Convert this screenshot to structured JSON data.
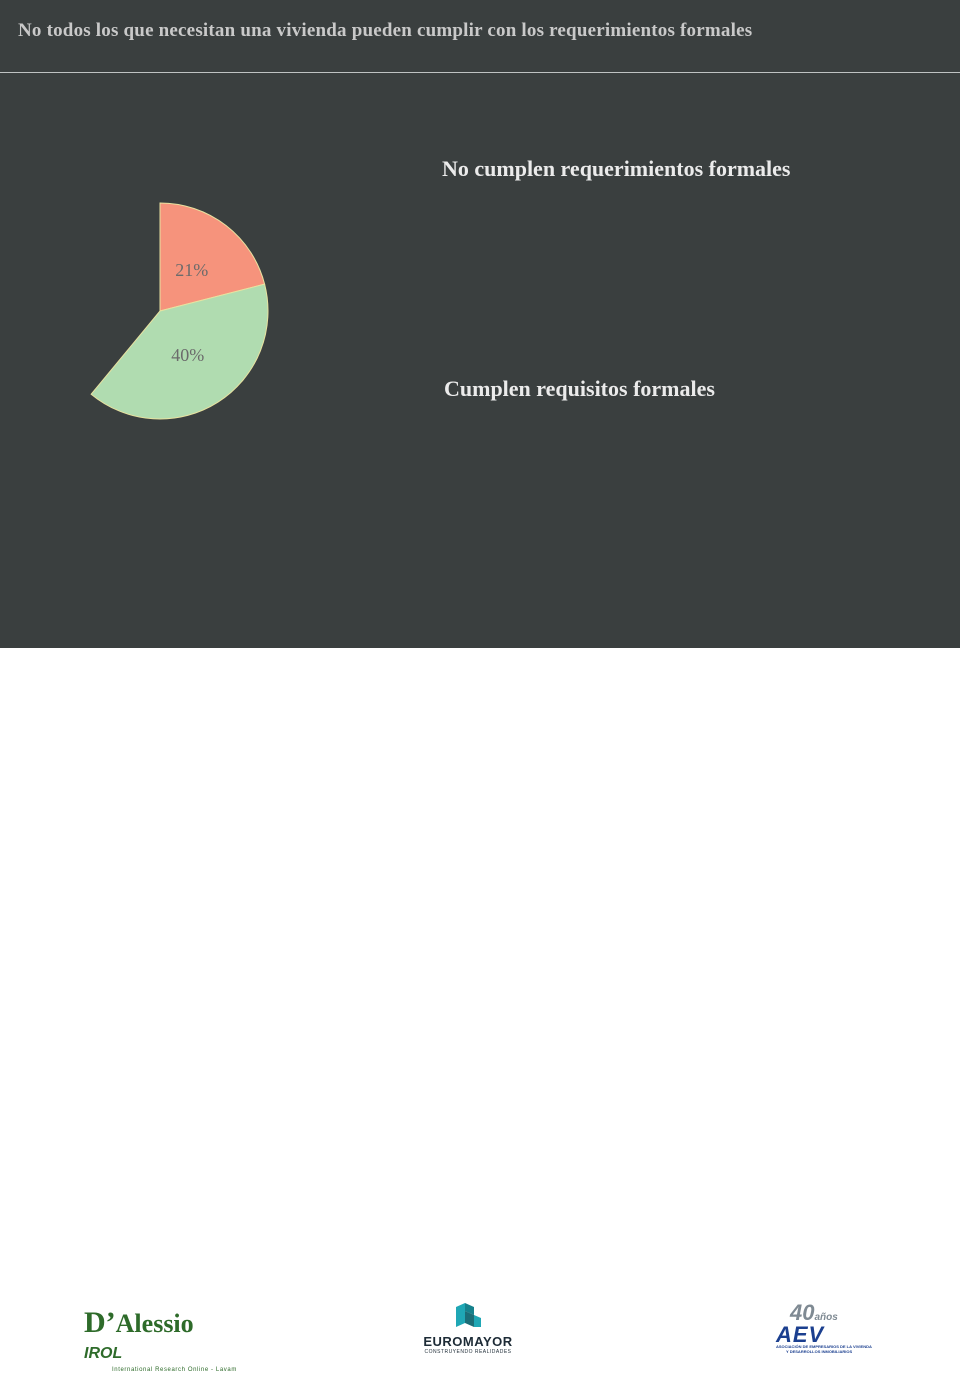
{
  "slide": {
    "title": "No todos los que necesitan una vivienda pueden cumplir con los requerimientos formales"
  },
  "chart_data": {
    "type": "pie",
    "title": "",
    "slices": [
      {
        "label": "",
        "value": 21,
        "display": "21%",
        "color": "#f6937c"
      },
      {
        "label": "",
        "value": 40,
        "display": "40%",
        "color": "#b0dcb0"
      }
    ],
    "start_angle_deg": 0,
    "direction": "clockwise",
    "annotations": [
      "No cumplen requerimientos formales",
      "Cumplen requisitos formales"
    ]
  },
  "footer": {
    "dalessio": {
      "main": "Alessio",
      "d": "D’",
      "irol": "IROL",
      "sub": "International Research Online - Lavam"
    },
    "euromayor": {
      "name": "EUROMAYOR",
      "sub": "CONSTRUYENDO REALIDADES"
    },
    "aev": {
      "number": "40",
      "anos": "años",
      "name": "AEV",
      "sub1": "ASOCIACIÓN DE EMPRESARIOS DE LA VIVIENDA",
      "sub2": "Y DESARROLLOS INMOBILIARIOS"
    }
  },
  "colors": {
    "background": "#3a3f3f",
    "title": "#c9c9c9",
    "slice_salmon": "#f6937c",
    "slice_green": "#b0dcb0"
  }
}
